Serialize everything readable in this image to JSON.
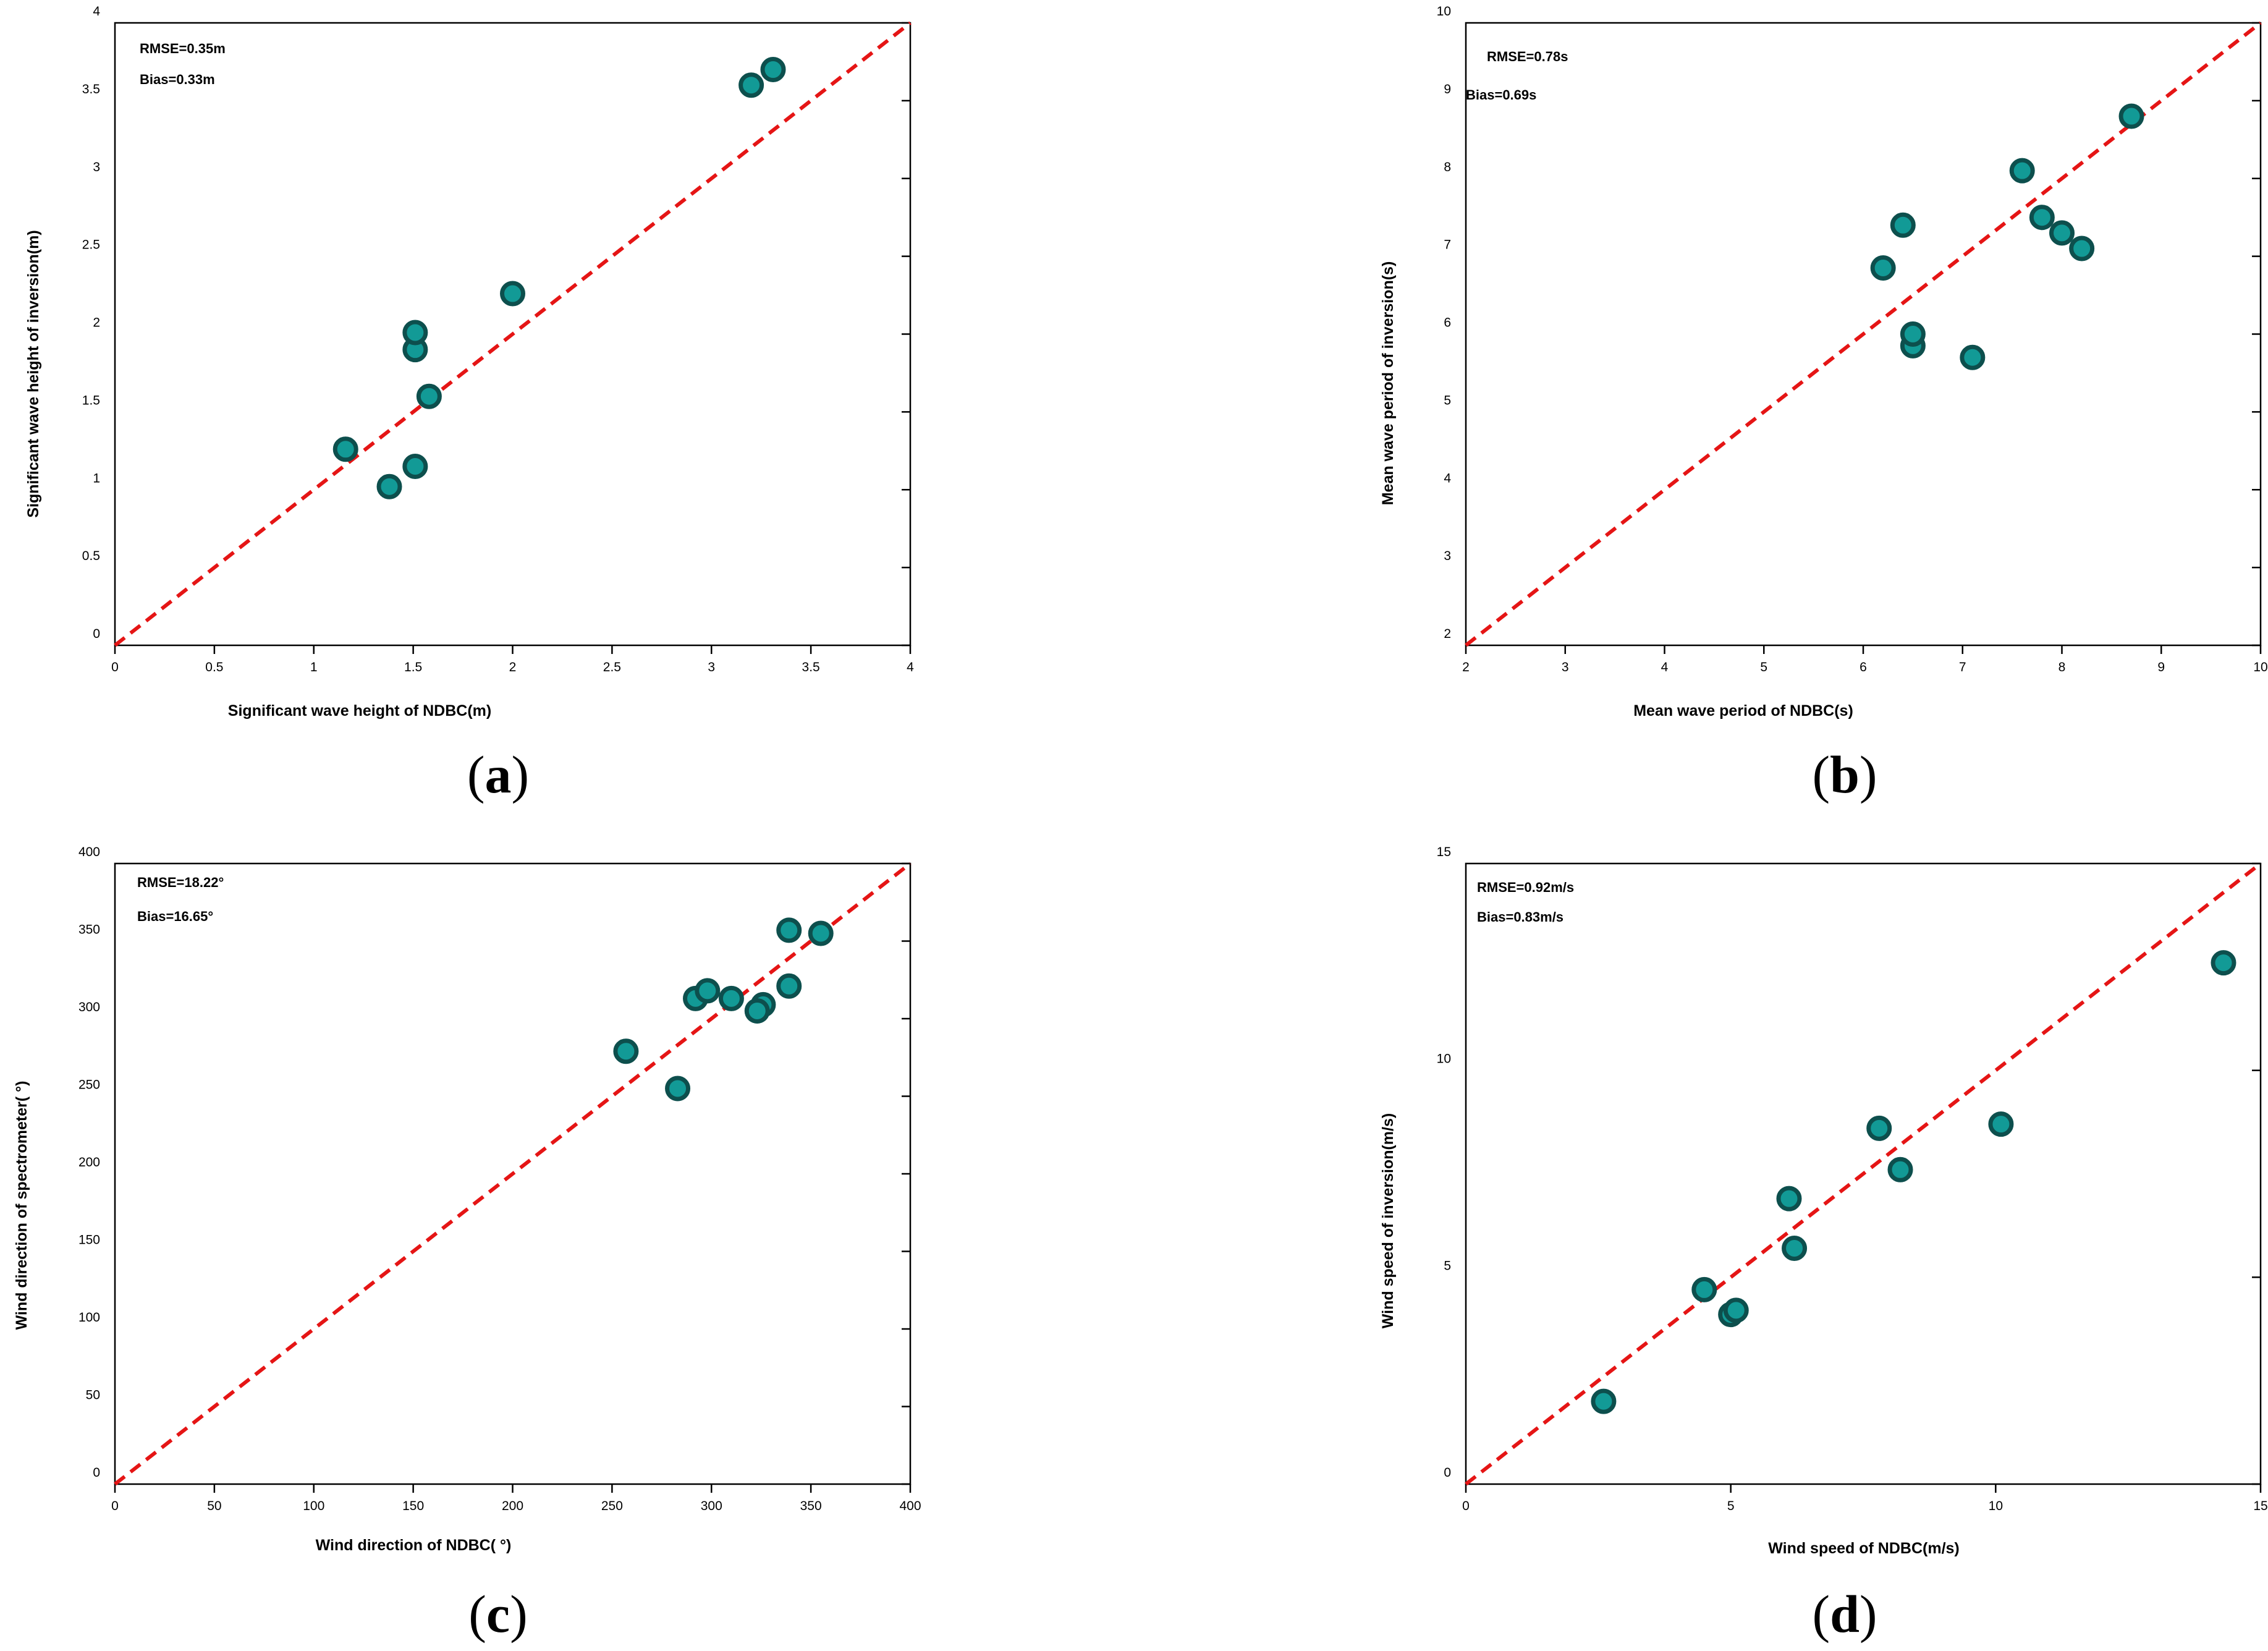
{
  "colors": {
    "marker_fill": "#129a96",
    "marker_edge": "#0d4f4d",
    "reference_line": "#e51515"
  },
  "chart_data": [
    {
      "type": "scatter",
      "panel": "(a)",
      "caption_letter": "a",
      "xlabel": "Significant wave height of NDBC(m)",
      "ylabel": "Significant wave height of inversion(m)",
      "xlim": [
        0,
        4
      ],
      "ylim": [
        0,
        4
      ],
      "xticks": [
        "0",
        "0.5",
        "1",
        "1.5",
        "2",
        "2.5",
        "3",
        "3.5",
        "4"
      ],
      "yticks": [
        "0",
        "0.5",
        "1",
        "1.5",
        "2",
        "2.5",
        "3",
        "3.5",
        "4"
      ],
      "rmse": "RMSE=0.35m",
      "bias": "Bias=0.33m",
      "reference_line": "y = x",
      "x": [
        1.16,
        1.38,
        1.51,
        1.51,
        1.51,
        1.58,
        2.0,
        3.2,
        3.31
      ],
      "y": [
        1.26,
        1.02,
        1.15,
        1.9,
        2.01,
        1.6,
        2.26,
        3.6,
        3.7
      ]
    },
    {
      "type": "scatter",
      "panel": "(b)",
      "caption_letter": "b",
      "xlabel": "Mean wave period of NDBC(s)",
      "ylabel": "Mean wave period of inversion(s)",
      "xlim": [
        2,
        10
      ],
      "ylim": [
        2,
        10
      ],
      "xticks": [
        "2",
        "3",
        "4",
        "5",
        "6",
        "7",
        "8",
        "9",
        "10"
      ],
      "yticks": [
        "2",
        "3",
        "4",
        "5",
        "6",
        "7",
        "8",
        "9",
        "10"
      ],
      "rmse": "RMSE=0.78s",
      "bias": "Bias=0.69s",
      "reference_line": "y = x",
      "x": [
        6.2,
        6.4,
        6.5,
        6.5,
        7.1,
        7.6,
        7.8,
        8.0,
        8.2,
        8.7
      ],
      "y": [
        6.85,
        7.4,
        5.85,
        6.0,
        5.7,
        8.1,
        7.5,
        7.3,
        7.1,
        8.8
      ]
    },
    {
      "type": "scatter",
      "panel": "(c)",
      "caption_letter": "c",
      "xlabel": "Wind direction of NDBC( °)",
      "ylabel": "Wind direction of spectrometer( °)",
      "xlim": [
        0,
        400
      ],
      "ylim": [
        0,
        400
      ],
      "xticks": [
        "0",
        "50",
        "100",
        "150",
        "200",
        "250",
        "300",
        "350",
        "400"
      ],
      "yticks": [
        "0",
        "50",
        "100",
        "150",
        "200",
        "250",
        "300",
        "350",
        "400"
      ],
      "rmse": "RMSE=18.22°",
      "bias": "Bias=16.65°",
      "reference_line": "y = x",
      "x": [
        257,
        283,
        292,
        298,
        310,
        326,
        323,
        339,
        339,
        355
      ],
      "y": [
        279,
        255,
        313,
        318,
        313,
        309,
        305,
        321,
        357,
        355
      ]
    },
    {
      "type": "scatter",
      "panel": "(d)",
      "caption_letter": "d",
      "xlabel": "Wind speed of NDBC(m/s)",
      "ylabel": "Wind speed of inversion(m/s)",
      "xlim": [
        0,
        15
      ],
      "ylim": [
        0,
        15
      ],
      "xticks": [
        "0",
        "5",
        "10",
        "15"
      ],
      "yticks": [
        "0",
        "5",
        "10",
        "15"
      ],
      "rmse": "RMSE=0.92m/s",
      "bias": "Bias=0.83m/s",
      "reference_line": "y = x",
      "x": [
        2.6,
        4.5,
        5.0,
        5.1,
        6.1,
        6.2,
        7.8,
        8.2,
        10.1,
        14.3
      ],
      "y": [
        2.0,
        4.7,
        4.1,
        4.2,
        6.9,
        5.7,
        8.6,
        7.6,
        8.7,
        12.6
      ]
    }
  ]
}
